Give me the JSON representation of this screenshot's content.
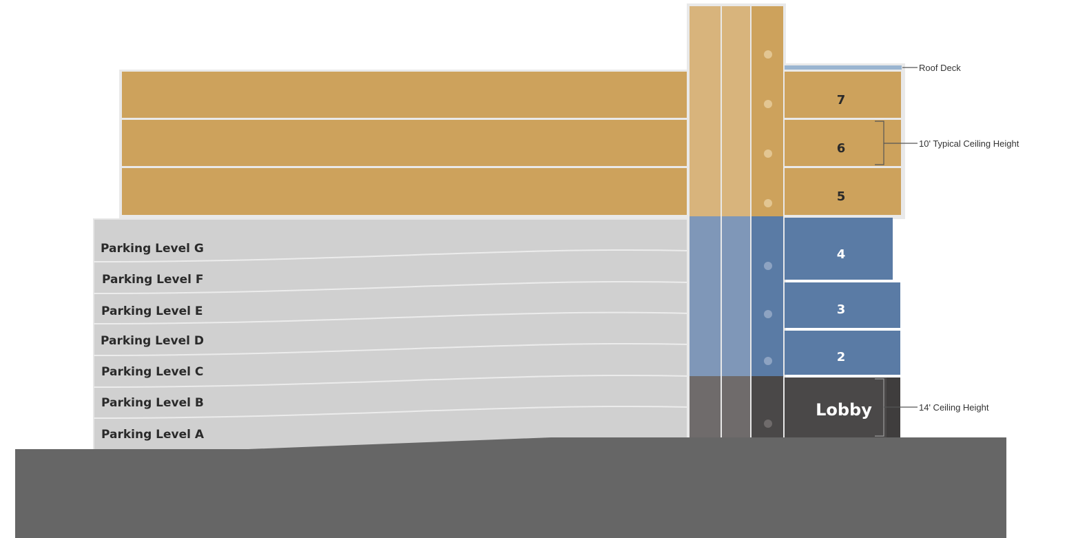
{
  "colors": {
    "residential": "#cda25c",
    "residential_core": "#d8b47c",
    "office": "#5a7ba5",
    "office_core": "#7f97b8",
    "lobby": "#4a4848",
    "lobby_core": "#6f6b6b",
    "parking": "#d0d0d0",
    "ground": "#666666",
    "roof_deck": "#9ab5d0"
  },
  "parking_levels": [
    "Parking Level G",
    "Parking Level F",
    "Parking Level E",
    "Parking Level D",
    "Parking Level C",
    "Parking Level B",
    "Parking Level A"
  ],
  "floors": [
    {
      "label": "7",
      "use": "residential"
    },
    {
      "label": "6",
      "use": "residential"
    },
    {
      "label": "5",
      "use": "residential"
    },
    {
      "label": "4",
      "use": "office"
    },
    {
      "label": "3",
      "use": "office"
    },
    {
      "label": "2",
      "use": "office"
    }
  ],
  "lobby_label": "Lobby",
  "callouts": {
    "roof_deck": "Roof Deck",
    "typical_ceiling": "10' Typical Ceiling Height",
    "lobby_ceiling": "14' Ceiling Height"
  }
}
